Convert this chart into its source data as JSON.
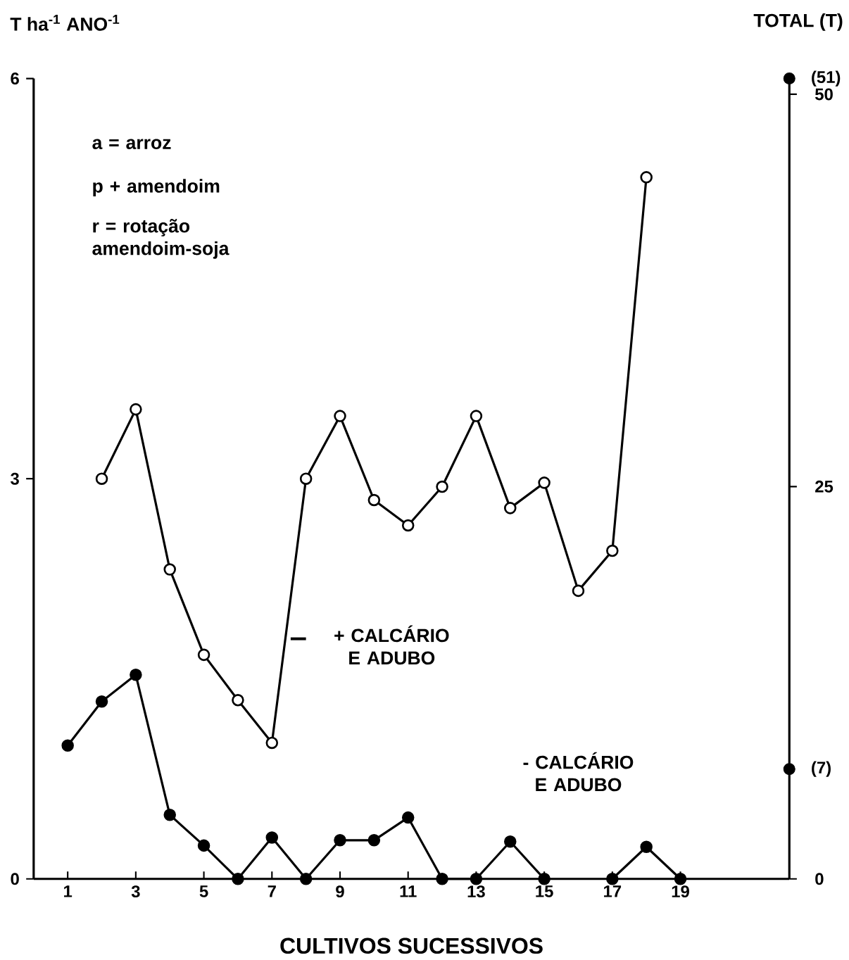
{
  "chart_data": {
    "type": "line",
    "ylabel": "T ha$^{-1}$   ANO$^{-1}$",
    "y2label": "TOTAL (T)",
    "xlabel": "CULTIVOS SUCESSIVOS",
    "xlim": [
      0,
      22.2
    ],
    "xticks": [
      1,
      3,
      5,
      7,
      9,
      11,
      13,
      15,
      17,
      19
    ],
    "ylim": [
      0,
      6
    ],
    "yticks": [
      0,
      3,
      6
    ],
    "y2lim": [
      0,
      51
    ],
    "y2ticks": [
      0,
      25,
      50
    ],
    "marker": "circle",
    "line_style": "solid",
    "grid": false,
    "annotations": [
      "a = arroz",
      "p + amendoim",
      "r = rotação amendoim-soja"
    ],
    "series": [
      {
        "name": "+ CALCÁRIO E ADUBO",
        "color": "#000000",
        "x": [
          2,
          3,
          4,
          5,
          6,
          7,
          8,
          9,
          10,
          11,
          12,
          13,
          14,
          15,
          16,
          17,
          18
        ],
        "values": [
          3.0,
          3.52,
          2.32,
          1.68,
          1.34,
          1.02,
          3.0,
          3.47,
          2.84,
          2.65,
          2.94,
          3.47,
          2.78,
          2.97,
          2.16,
          2.46,
          5.26
        ]
      },
      {
        "name": "- CALCÁRIO E ADUBO",
        "color": "#000000",
        "x": [
          1,
          2,
          3,
          4,
          5,
          6,
          7,
          8,
          9,
          10,
          11,
          12,
          13,
          14,
          15,
          16,
          17,
          18,
          19
        ],
        "values": [
          1.0,
          1.33,
          1.53,
          0.48,
          0.25,
          0,
          0.31,
          0,
          0.29,
          0.29,
          0.46,
          0,
          0,
          0.28,
          0,
          null,
          0,
          0.24,
          0
        ]
      },
      {
        "type": "scatter",
        "axis": "y2",
        "color": "#000000",
        "x": [
          22.2,
          22.2
        ],
        "values": [
          51,
          7
        ],
        "value_labels": [
          "(51)",
          "(7)"
        ]
      }
    ]
  }
}
